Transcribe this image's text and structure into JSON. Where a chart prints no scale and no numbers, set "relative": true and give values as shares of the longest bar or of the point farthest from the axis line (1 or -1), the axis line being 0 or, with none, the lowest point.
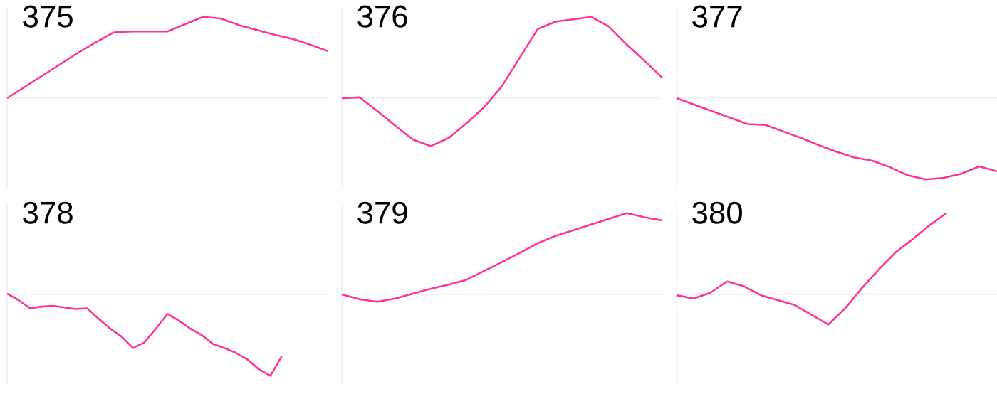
{
  "chart_data": [
    {
      "type": "line",
      "title": "375",
      "relative": true,
      "color": "#ff3399",
      "categories": [
        null,
        null,
        null,
        null,
        null,
        null,
        null,
        null,
        null,
        null,
        null,
        null,
        null,
        null,
        null,
        null,
        null,
        null,
        null
      ],
      "values": [
        0,
        0.14,
        0.28,
        0.42,
        0.56,
        0.69,
        0.81,
        0.82,
        0.82,
        0.82,
        0.91,
        1.0,
        0.98,
        0.9,
        0.84,
        0.78,
        0.73,
        0.66,
        0.58
      ]
    },
    {
      "type": "line",
      "title": "376",
      "relative": true,
      "color": "#ff3399",
      "categories": [
        null,
        null,
        null,
        null,
        null,
        null,
        null,
        null,
        null,
        null,
        null,
        null,
        null,
        null,
        null,
        null,
        null,
        null,
        null
      ],
      "values": [
        0,
        0.01,
        -0.16,
        -0.34,
        -0.51,
        -0.59,
        -0.49,
        -0.31,
        -0.11,
        0.15,
        0.5,
        0.85,
        0.94,
        0.97,
        1.0,
        0.88,
        0.66,
        0.46,
        0.25
      ]
    },
    {
      "type": "line",
      "title": "377",
      "relative": true,
      "color": "#ff3399",
      "categories": [
        null,
        null,
        null,
        null,
        null,
        null,
        null,
        null,
        null,
        null,
        null,
        null,
        null,
        null,
        null,
        null,
        null,
        null,
        null
      ],
      "values": [
        0,
        -0.08,
        -0.16,
        -0.24,
        -0.32,
        -0.33,
        -0.41,
        -0.49,
        -0.58,
        -0.66,
        -0.73,
        -0.77,
        -0.85,
        -0.95,
        -1.0,
        -0.98,
        -0.93,
        -0.84,
        -0.9
      ]
    },
    {
      "type": "line",
      "title": "378",
      "relative": true,
      "color": "#ff3399",
      "categories": [
        null,
        null,
        null,
        null,
        null,
        null,
        null,
        null,
        null,
        null,
        null,
        null,
        null,
        null,
        null,
        null,
        null,
        null,
        null,
        null,
        null,
        null,
        null,
        null,
        null,
        null,
        null,
        null,
        null
      ],
      "values": [
        0.01,
        -0.07,
        -0.17,
        -0.15,
        -0.14,
        -0.16,
        -0.18,
        -0.17,
        -0.3,
        -0.42,
        -0.52,
        -0.66,
        -0.59,
        -0.42,
        -0.24,
        -0.32,
        -0.42,
        -0.5,
        -0.61,
        -0.66,
        -0.72,
        -0.8,
        -0.92,
        -1.0,
        -0.76,
        null,
        null,
        null,
        null
      ]
    },
    {
      "type": "line",
      "title": "379",
      "relative": true,
      "color": "#ff3399",
      "categories": [
        null,
        null,
        null,
        null,
        null,
        null,
        null,
        null,
        null,
        null,
        null,
        null,
        null,
        null,
        null,
        null,
        null,
        null,
        null
      ],
      "values": [
        0,
        -0.06,
        -0.09,
        -0.05,
        0.01,
        0.07,
        0.12,
        0.18,
        0.29,
        0.4,
        0.51,
        0.63,
        0.72,
        0.79,
        0.86,
        0.93,
        1.0,
        0.95,
        0.91
      ]
    },
    {
      "type": "line",
      "title": "380",
      "relative": true,
      "color": "#ff3399",
      "categories": [
        null,
        null,
        null,
        null,
        null,
        null,
        null,
        null,
        null,
        null,
        null,
        null,
        null,
        null,
        null,
        null,
        null,
        null,
        null,
        null
      ],
      "values": [
        -0.01,
        -0.05,
        0.02,
        0.16,
        0.1,
        -0.01,
        -0.07,
        -0.13,
        -0.25,
        -0.37,
        -0.17,
        0.08,
        0.31,
        0.52,
        0.68,
        0.85,
        1.0,
        null,
        null,
        null
      ]
    }
  ]
}
